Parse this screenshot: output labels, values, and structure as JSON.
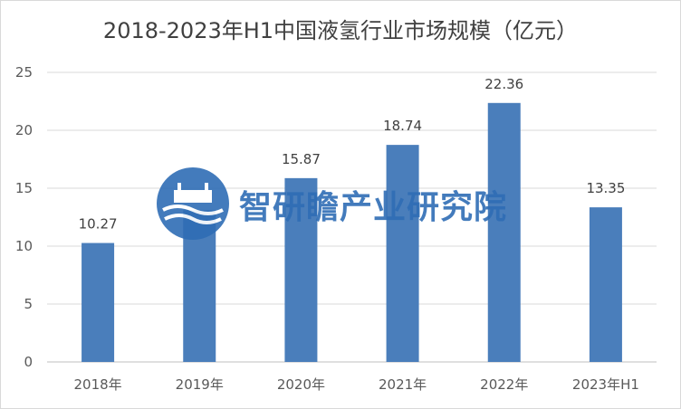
{
  "chart_data": {
    "type": "bar",
    "title": "2018-2023年H1中国液氢行业市场规模（亿元）",
    "categories": [
      "2018年",
      "2019年",
      "2020年",
      "2021年",
      "2022年",
      "2023年H1"
    ],
    "values": [
      10.27,
      13.1,
      15.87,
      18.74,
      22.36,
      13.35
    ],
    "data_labels": [
      "10.27",
      "",
      "15.87",
      "18.74",
      "22.36",
      "13.35"
    ],
    "ylim": [
      0,
      25
    ],
    "yticks": [
      0,
      5,
      10,
      15,
      20,
      25
    ],
    "grid": true,
    "bar_color": "#4a7ebb"
  },
  "watermark": {
    "text": "智研瞻产业研究院",
    "color": "#2f6db5"
  }
}
